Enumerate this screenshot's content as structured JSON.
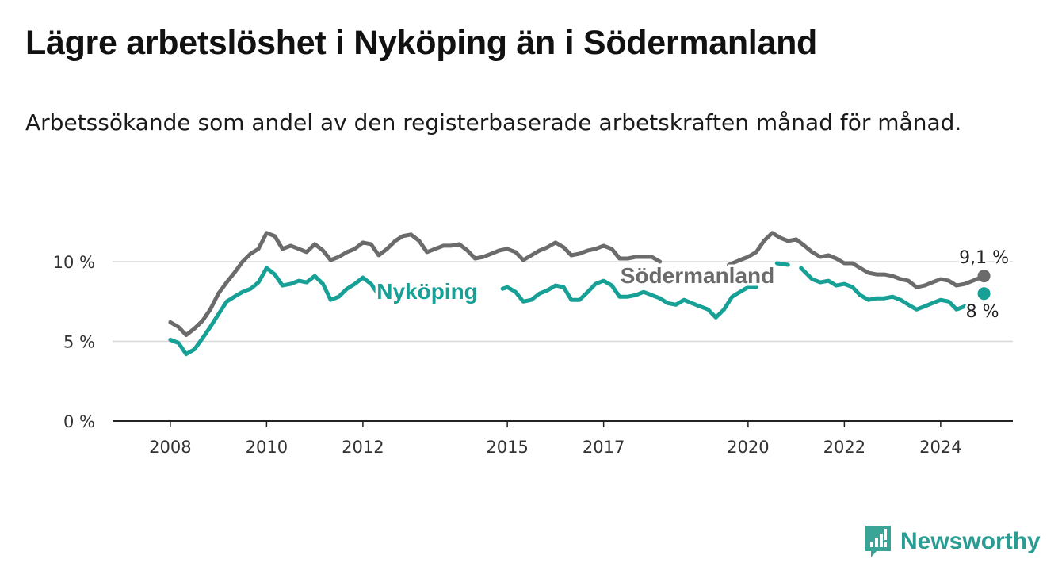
{
  "title": "Lägre arbetslöshet i Nyköping än i Södermanland",
  "subtitle": "Arbetssökande som andel av den registerbaserade arbetskraften månad för månad.",
  "logo": {
    "text": "Newsworthy",
    "icon": "bar-chart-speech-bubble-icon"
  },
  "colors": {
    "nykoping": "#17a096",
    "sodermanland": "#6b6b6b",
    "grid": "#d8d8d8",
    "axis": "#222222"
  },
  "chart_data": {
    "type": "line",
    "ylim": [
      0,
      10
    ],
    "yticks": [
      0,
      5,
      10
    ],
    "ytick_labels": [
      "0 %",
      "5 %",
      "10 %"
    ],
    "xticks": [
      2008,
      2010,
      2012,
      2015,
      2017,
      2020,
      2022,
      2024
    ],
    "xtick_labels": [
      "2008",
      "2010",
      "2012",
      "2015",
      "2017",
      "2020",
      "2022",
      "2024"
    ],
    "grid": true,
    "series": [
      {
        "name": "Södermanland",
        "end_label": "9,1 %",
        "points": [
          [
            2008.0,
            6.2
          ],
          [
            2008.17,
            5.9
          ],
          [
            2008.33,
            5.4
          ],
          [
            2008.5,
            5.8
          ],
          [
            2008.67,
            6.3
          ],
          [
            2008.83,
            7.0
          ],
          [
            2009.0,
            8.0
          ],
          [
            2009.17,
            8.7
          ],
          [
            2009.33,
            9.3
          ],
          [
            2009.5,
            10.0
          ],
          [
            2009.67,
            10.5
          ],
          [
            2009.83,
            10.8
          ],
          [
            2010.0,
            11.8
          ],
          [
            2010.17,
            11.6
          ],
          [
            2010.33,
            10.8
          ],
          [
            2010.5,
            11.0
          ],
          [
            2010.67,
            10.8
          ],
          [
            2010.83,
            10.6
          ],
          [
            2011.0,
            11.1
          ],
          [
            2011.17,
            10.7
          ],
          [
            2011.33,
            10.1
          ],
          [
            2011.5,
            10.3
          ],
          [
            2011.67,
            10.6
          ],
          [
            2011.83,
            10.8
          ],
          [
            2012.0,
            11.2
          ],
          [
            2012.17,
            11.1
          ],
          [
            2012.33,
            10.4
          ],
          [
            2012.5,
            10.8
          ],
          [
            2012.67,
            11.3
          ],
          [
            2012.83,
            11.6
          ],
          [
            2013.0,
            11.7
          ],
          [
            2013.17,
            11.3
          ],
          [
            2013.33,
            10.6
          ],
          [
            2013.5,
            10.8
          ],
          [
            2013.67,
            11.0
          ],
          [
            2013.83,
            11.0
          ],
          [
            2014.0,
            11.1
          ],
          [
            2014.17,
            10.7
          ],
          [
            2014.33,
            10.2
          ],
          [
            2014.5,
            10.3
          ],
          [
            2014.67,
            10.5
          ],
          [
            2014.83,
            10.7
          ],
          [
            2015.0,
            10.8
          ],
          [
            2015.17,
            10.6
          ],
          [
            2015.33,
            10.1
          ],
          [
            2015.5,
            10.4
          ],
          [
            2015.67,
            10.7
          ],
          [
            2015.83,
            10.9
          ],
          [
            2016.0,
            11.2
          ],
          [
            2016.17,
            10.9
          ],
          [
            2016.33,
            10.4
          ],
          [
            2016.5,
            10.5
          ],
          [
            2016.67,
            10.7
          ],
          [
            2016.83,
            10.8
          ],
          [
            2017.0,
            11.0
          ],
          [
            2017.17,
            10.8
          ],
          [
            2017.33,
            10.2
          ],
          [
            2017.5,
            10.2
          ],
          [
            2017.67,
            10.3
          ],
          [
            2017.83,
            10.3
          ],
          [
            2018.0,
            10.3
          ],
          [
            2018.17,
            10.0
          ],
          null,
          [
            2019.6,
            9.8
          ],
          [
            2019.83,
            10.1
          ],
          [
            2020.0,
            10.3
          ],
          [
            2020.17,
            10.6
          ],
          [
            2020.33,
            11.3
          ],
          [
            2020.5,
            11.8
          ],
          [
            2020.67,
            11.5
          ],
          [
            2020.83,
            11.3
          ],
          [
            2021.0,
            11.4
          ],
          [
            2021.17,
            11.0
          ],
          [
            2021.33,
            10.6
          ],
          [
            2021.5,
            10.3
          ],
          [
            2021.67,
            10.4
          ],
          [
            2021.83,
            10.2
          ],
          [
            2022.0,
            9.9
          ],
          [
            2022.17,
            9.9
          ],
          [
            2022.33,
            9.6
          ],
          [
            2022.5,
            9.3
          ],
          [
            2022.67,
            9.2
          ],
          [
            2022.83,
            9.2
          ],
          [
            2023.0,
            9.1
          ],
          [
            2023.17,
            8.9
          ],
          [
            2023.33,
            8.8
          ],
          [
            2023.5,
            8.4
          ],
          [
            2023.67,
            8.5
          ],
          [
            2023.83,
            8.7
          ],
          [
            2024.0,
            8.9
          ],
          [
            2024.17,
            8.8
          ],
          [
            2024.33,
            8.5
          ],
          [
            2024.5,
            8.6
          ],
          [
            2024.67,
            8.8
          ],
          [
            2024.9,
            9.1
          ]
        ]
      },
      {
        "name": "Nyköping",
        "end_label": "8 %",
        "points": [
          [
            2008.0,
            5.1
          ],
          [
            2008.17,
            4.9
          ],
          [
            2008.33,
            4.2
          ],
          [
            2008.5,
            4.5
          ],
          [
            2008.67,
            5.2
          ],
          [
            2008.83,
            5.9
          ],
          [
            2009.0,
            6.7
          ],
          [
            2009.17,
            7.5
          ],
          [
            2009.33,
            7.8
          ],
          [
            2009.5,
            8.1
          ],
          [
            2009.67,
            8.3
          ],
          [
            2009.83,
            8.7
          ],
          [
            2010.0,
            9.6
          ],
          [
            2010.17,
            9.2
          ],
          [
            2010.33,
            8.5
          ],
          [
            2010.5,
            8.6
          ],
          [
            2010.67,
            8.8
          ],
          [
            2010.83,
            8.7
          ],
          [
            2011.0,
            9.1
          ],
          [
            2011.17,
            8.6
          ],
          [
            2011.33,
            7.6
          ],
          [
            2011.5,
            7.8
          ],
          [
            2011.67,
            8.3
          ],
          [
            2011.83,
            8.6
          ],
          [
            2012.0,
            9.0
          ],
          [
            2012.17,
            8.6
          ],
          [
            2012.33,
            7.9
          ],
          null,
          [
            2014.9,
            8.3
          ],
          [
            2015.0,
            8.4
          ],
          [
            2015.17,
            8.1
          ],
          [
            2015.33,
            7.5
          ],
          [
            2015.5,
            7.6
          ],
          [
            2015.67,
            8.0
          ],
          [
            2015.83,
            8.2
          ],
          [
            2016.0,
            8.5
          ],
          [
            2016.17,
            8.4
          ],
          [
            2016.33,
            7.6
          ],
          [
            2016.5,
            7.6
          ],
          [
            2016.67,
            8.1
          ],
          [
            2016.83,
            8.6
          ],
          [
            2017.0,
            8.8
          ],
          [
            2017.17,
            8.5
          ],
          [
            2017.33,
            7.8
          ],
          [
            2017.5,
            7.8
          ],
          [
            2017.67,
            7.9
          ],
          [
            2017.83,
            8.1
          ],
          [
            2018.0,
            7.9
          ],
          [
            2018.17,
            7.7
          ],
          [
            2018.33,
            7.4
          ],
          [
            2018.5,
            7.3
          ],
          [
            2018.67,
            7.6
          ],
          [
            2018.83,
            7.4
          ],
          [
            2019.0,
            7.2
          ],
          [
            2019.17,
            7.0
          ],
          [
            2019.33,
            6.5
          ],
          [
            2019.5,
            7.0
          ],
          [
            2019.67,
            7.8
          ],
          [
            2019.83,
            8.1
          ],
          [
            2020.0,
            8.4
          ],
          [
            2020.17,
            8.4
          ],
          null,
          [
            2020.6,
            9.9
          ],
          [
            2020.83,
            9.8
          ],
          null,
          [
            2021.1,
            9.6
          ],
          [
            2021.33,
            8.9
          ],
          [
            2021.5,
            8.7
          ],
          [
            2021.67,
            8.8
          ],
          [
            2021.83,
            8.5
          ],
          [
            2022.0,
            8.6
          ],
          [
            2022.17,
            8.4
          ],
          [
            2022.33,
            7.9
          ],
          [
            2022.5,
            7.6
          ],
          [
            2022.67,
            7.7
          ],
          [
            2022.83,
            7.7
          ],
          [
            2023.0,
            7.8
          ],
          [
            2023.17,
            7.6
          ],
          [
            2023.33,
            7.3
          ],
          [
            2023.5,
            7.0
          ],
          [
            2023.67,
            7.2
          ],
          [
            2023.83,
            7.4
          ],
          [
            2024.0,
            7.6
          ],
          [
            2024.17,
            7.5
          ],
          [
            2024.33,
            7.0
          ],
          [
            2024.5,
            7.2
          ],
          [
            2024.67,
            7.2
          ]
        ]
      }
    ],
    "endpoints": [
      {
        "series": "Södermanland",
        "x": 2024.9,
        "y": 9.1
      },
      {
        "series": "Nyköping",
        "x": 2024.9,
        "y": 8.0
      }
    ]
  }
}
